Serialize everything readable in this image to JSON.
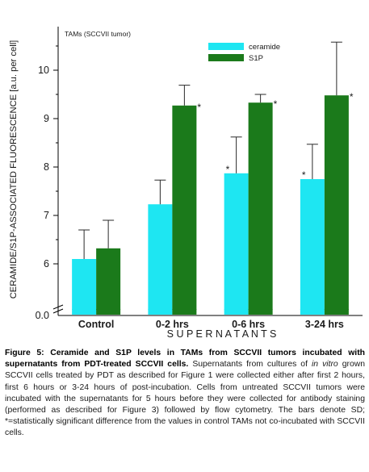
{
  "chart_data": {
    "type": "bar",
    "inset_title": "TAMs (SCCVII tumor)",
    "ylabel": "CERAMIDE/S1P-ASSOCIATED FLUORESCENCE [a.u. per cell]",
    "xlabel": "S U P E R N A T A N T S",
    "categories": [
      "Control",
      "0-2 hrs",
      "0-6 hrs",
      "3-24 hrs"
    ],
    "y_ticks": [
      "6",
      "7",
      "8",
      "9",
      "10"
    ],
    "y_zero_label": "0.0",
    "ylim": [
      5.05,
      10.9
    ],
    "y_axis_break": true,
    "legend_position": "top-right-inside",
    "series": [
      {
        "name": "ceramide",
        "color": "#1ee6f2",
        "values": [
          6.1,
          7.23,
          7.87,
          7.75
        ],
        "error": [
          0.6,
          0.5,
          0.75,
          0.72
        ],
        "significant": [
          false,
          false,
          true,
          true
        ]
      },
      {
        "name": "S1P",
        "color": "#1b7a1b",
        "values": [
          6.32,
          9.27,
          9.33,
          9.48
        ],
        "error": [
          0.58,
          0.42,
          0.17,
          1.1
        ],
        "significant": [
          false,
          true,
          true,
          true
        ]
      }
    ],
    "significance_marker": "*"
  },
  "caption": {
    "figure_title": "Figure 5: Ceramide and S1P levels in TAMs from SCCVII tumors incubated with supernatants from PDT-treated SCCVII cells.",
    "text_1": " Supernatants from cultures of ",
    "italic_1": "in vitro",
    "text_2": " grown SCCVII cells treated by PDT as described for Figure 1 were collected either after first 2 hours, first 6 hours or 3-24 hours of post-incubation. Cells from untreated SCCVII tumors were incubated with the supernatants for 5 hours before they were collected for antibody staining (performed as described for Figure 3) followed by flow cytometry. The bars denote SD; *=statistically significant difference from the values in control TAMs not co-incubated with SCCVII cells."
  }
}
